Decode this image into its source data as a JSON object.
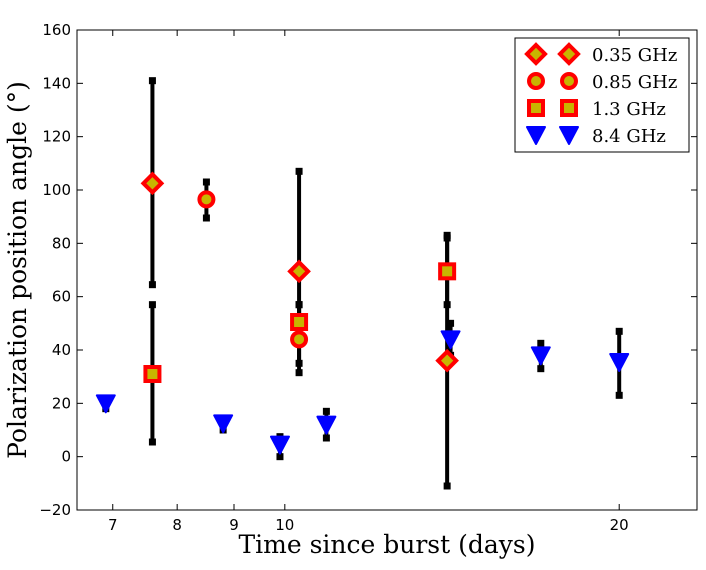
{
  "chart_data": {
    "type": "scatter",
    "title": "",
    "xlabel": "Time since burst (days)",
    "ylabel": "Polarization position angle (°)",
    "xscale": "log",
    "xlim": [
      6.5,
      23.5
    ],
    "ylim": [
      -20,
      160
    ],
    "xticks": [
      7,
      8,
      9,
      10,
      20
    ],
    "yticks": [
      -20,
      0,
      20,
      40,
      60,
      80,
      100,
      120,
      140,
      160
    ],
    "legend_position": "top-right",
    "series": [
      {
        "name": "0.35 GHz",
        "marker": "diamond",
        "color": "#ff0000",
        "face": "#c8b400",
        "points": [
          {
            "x": 7.6,
            "y": 102.5,
            "ylo": 64.5,
            "yhi": 141
          },
          {
            "x": 10.3,
            "y": 69.5,
            "ylo": 31.5,
            "yhi": 107
          },
          {
            "x": 14.0,
            "y": 36,
            "ylo": -11,
            "yhi": 83
          }
        ]
      },
      {
        "name": "0.85 GHz",
        "marker": "circle",
        "color": "#ff0000",
        "face": "#c8b400",
        "points": [
          {
            "x": 8.5,
            "y": 96.5,
            "ylo": 89.5,
            "yhi": 103
          },
          {
            "x": 10.3,
            "y": 44,
            "ylo": 35,
            "yhi": 57
          }
        ]
      },
      {
        "name": "1.3 GHz",
        "marker": "square",
        "color": "#ff0000",
        "face": "#c8b400",
        "points": [
          {
            "x": 7.6,
            "y": 31,
            "ylo": 5.5,
            "yhi": 57
          },
          {
            "x": 10.3,
            "y": 50.5,
            "ylo": 43.5,
            "yhi": 57
          },
          {
            "x": 14.0,
            "y": 69.5,
            "ylo": 57,
            "yhi": 82
          }
        ]
      },
      {
        "name": "8.4 GHz",
        "marker": "triangle-down",
        "color": "#0000ff",
        "face": "#0000ff",
        "points": [
          {
            "x": 6.9,
            "y": 20,
            "ylo": 18,
            "yhi": 22
          },
          {
            "x": 8.8,
            "y": 12.5,
            "ylo": 10,
            "yhi": 14
          },
          {
            "x": 9.9,
            "y": 4.5,
            "ylo": 0,
            "yhi": 7.5
          },
          {
            "x": 10.9,
            "y": 12,
            "ylo": 7,
            "yhi": 17
          },
          {
            "x": 14.1,
            "y": 44,
            "ylo": 38,
            "yhi": 50
          },
          {
            "x": 17.0,
            "y": 38,
            "ylo": 33,
            "yhi": 42.5
          },
          {
            "x": 20.0,
            "y": 35.5,
            "ylo": 23,
            "yhi": 47
          }
        ]
      }
    ]
  }
}
